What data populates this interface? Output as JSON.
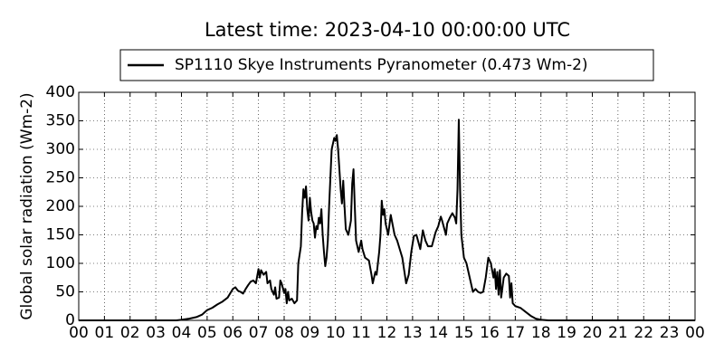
{
  "chart_data": {
    "type": "line",
    "title": "Latest time: 2023-04-10 00:00:00 UTC",
    "y_label": "Global solar radiation (Wm-2)",
    "x": [
      0,
      3.8,
      4.0,
      4.3,
      4.6,
      4.8,
      5.0,
      5.2,
      5.4,
      5.6,
      5.8,
      6.0,
      6.1,
      6.2,
      6.3,
      6.4,
      6.5,
      6.6,
      6.7,
      6.8,
      6.9,
      7.0,
      7.05,
      7.1,
      7.2,
      7.3,
      7.35,
      7.45,
      7.5,
      7.6,
      7.65,
      7.7,
      7.8,
      7.85,
      7.9,
      8.0,
      8.05,
      8.1,
      8.15,
      8.2,
      8.3,
      8.4,
      8.5,
      8.55,
      8.65,
      8.7,
      8.75,
      8.8,
      8.85,
      8.9,
      8.95,
      9.0,
      9.05,
      9.1,
      9.15,
      9.2,
      9.25,
      9.3,
      9.35,
      9.4,
      9.45,
      9.5,
      9.55,
      9.6,
      9.65,
      9.7,
      9.75,
      9.85,
      9.9,
      9.95,
      10.0,
      10.05,
      10.1,
      10.2,
      10.25,
      10.3,
      10.35,
      10.4,
      10.5,
      10.6,
      10.65,
      10.7,
      10.75,
      10.8,
      10.9,
      11.0,
      11.05,
      11.15,
      11.3,
      11.4,
      11.45,
      11.55,
      11.6,
      11.7,
      11.75,
      11.8,
      11.85,
      11.9,
      11.95,
      12.05,
      12.15,
      12.3,
      12.4,
      12.5,
      12.6,
      12.7,
      12.75,
      12.85,
      12.95,
      13.05,
      13.15,
      13.3,
      13.4,
      13.5,
      13.6,
      13.75,
      13.9,
      14.0,
      14.1,
      14.15,
      14.3,
      14.35,
      14.45,
      14.55,
      14.65,
      14.7,
      14.75,
      14.8,
      14.85,
      14.9,
      15.0,
      15.1,
      15.2,
      15.3,
      15.35,
      15.45,
      15.55,
      15.65,
      15.75,
      15.85,
      15.95,
      16.05,
      16.15,
      16.2,
      16.25,
      16.3,
      16.35,
      16.4,
      16.45,
      16.55,
      16.65,
      16.75,
      16.8,
      16.85,
      16.9,
      17.0,
      17.2,
      17.4,
      17.6,
      17.8,
      18.0,
      18.3,
      24
    ],
    "series": [
      {
        "name": "SP1110 Skye Instruments Pyranometer (0.473 Wm-2)",
        "color": "#000000",
        "values": [
          0,
          0,
          1,
          3,
          6,
          10,
          18,
          22,
          28,
          33,
          40,
          55,
          58,
          52,
          50,
          47,
          55,
          62,
          68,
          70,
          65,
          90,
          75,
          88,
          80,
          85,
          65,
          70,
          55,
          45,
          58,
          38,
          40,
          70,
          65,
          48,
          55,
          30,
          50,
          35,
          38,
          30,
          35,
          100,
          130,
          190,
          230,
          215,
          235,
          195,
          175,
          215,
          190,
          175,
          170,
          145,
          165,
          160,
          180,
          170,
          195,
          150,
          120,
          95,
          110,
          140,
          200,
          300,
          310,
          320,
          315,
          325,
          300,
          230,
          205,
          245,
          200,
          160,
          150,
          175,
          240,
          265,
          200,
          140,
          120,
          140,
          125,
          110,
          105,
          80,
          65,
          85,
          80,
          120,
          150,
          210,
          185,
          195,
          170,
          150,
          185,
          150,
          140,
          125,
          110,
          80,
          65,
          80,
          120,
          148,
          150,
          125,
          158,
          140,
          130,
          130,
          155,
          165,
          182,
          175,
          150,
          170,
          180,
          188,
          180,
          170,
          230,
          352,
          230,
          150,
          110,
          100,
          80,
          60,
          50,
          55,
          50,
          48,
          50,
          75,
          110,
          100,
          75,
          90,
          55,
          85,
          45,
          88,
          40,
          75,
          82,
          78,
          40,
          65,
          30,
          25,
          22,
          15,
          8,
          3,
          1,
          0,
          0
        ]
      }
    ],
    "xlim": [
      0,
      24
    ],
    "xticks": [
      {
        "value": 0,
        "label": "00"
      },
      {
        "value": 1,
        "label": "01"
      },
      {
        "value": 2,
        "label": "02"
      },
      {
        "value": 3,
        "label": "03"
      },
      {
        "value": 4,
        "label": "04"
      },
      {
        "value": 5,
        "label": "05"
      },
      {
        "value": 6,
        "label": "06"
      },
      {
        "value": 7,
        "label": "07"
      },
      {
        "value": 8,
        "label": "08"
      },
      {
        "value": 9,
        "label": "09"
      },
      {
        "value": 10,
        "label": "10"
      },
      {
        "value": 11,
        "label": "11"
      },
      {
        "value": 12,
        "label": "12"
      },
      {
        "value": 13,
        "label": "13"
      },
      {
        "value": 14,
        "label": "14"
      },
      {
        "value": 15,
        "label": "15"
      },
      {
        "value": 16,
        "label": "16"
      },
      {
        "value": 17,
        "label": "17"
      },
      {
        "value": 18,
        "label": "18"
      },
      {
        "value": 19,
        "label": "19"
      },
      {
        "value": 20,
        "label": "20"
      },
      {
        "value": 21,
        "label": "21"
      },
      {
        "value": 22,
        "label": "22"
      },
      {
        "value": 23,
        "label": "23"
      },
      {
        "value": 24,
        "label": "00"
      }
    ],
    "ylim": [
      0,
      400
    ],
    "yticks": [
      0,
      50,
      100,
      150,
      200,
      250,
      300,
      350,
      400
    ],
    "grid": true,
    "legend": "top"
  }
}
